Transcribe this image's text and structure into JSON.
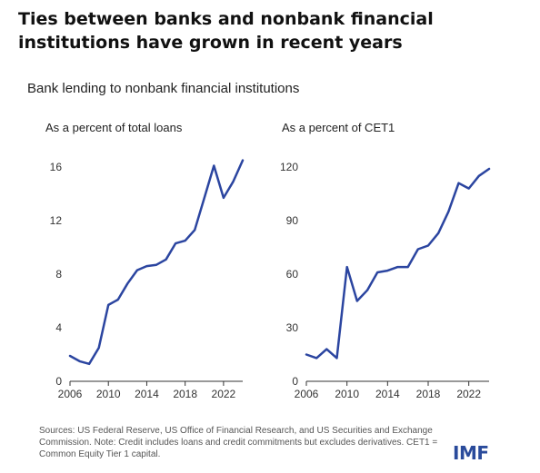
{
  "title": "Ties between banks and nonbank financial institutions have grown in recent years",
  "subtitle": "Bank lending to nonbank financial institutions",
  "source": "Sources: US Federal Reserve, US Office of Financial Research, and US Securities and Exchange Commission. Note: Credit includes loans and credit commitments but excludes derivatives. CET1 = Common Equity Tier 1 capital.",
  "logo": "IMF",
  "colors": {
    "line": "#2b45a0",
    "axis": "#333333",
    "logo": "#2a4b9b"
  },
  "chart_data": [
    {
      "type": "line",
      "title": "As a percent of total loans",
      "xlabel": "",
      "ylabel": "",
      "xlim": [
        2006,
        2024
      ],
      "ylim": [
        0,
        16
      ],
      "xticks": [
        2006,
        2010,
        2014,
        2018,
        2022
      ],
      "yticks": [
        0,
        4,
        8,
        12,
        16
      ],
      "grid": false,
      "series": [
        {
          "x": [
            2006,
            2007,
            2008,
            2009,
            2010,
            2011,
            2012,
            2013,
            2014,
            2015,
            2016,
            2017,
            2018,
            2019,
            2020,
            2021,
            2022,
            2023,
            2024
          ],
          "y": [
            1.9,
            1.5,
            1.3,
            2.5,
            5.7,
            6.1,
            7.3,
            8.3,
            8.6,
            8.7,
            9.1,
            10.3,
            10.5,
            11.3,
            13.7,
            16.1,
            13.7,
            14.9,
            16.5
          ]
        }
      ]
    },
    {
      "type": "line",
      "title": "As a percent of CET1",
      "xlabel": "",
      "ylabel": "",
      "xlim": [
        2006,
        2024
      ],
      "ylim": [
        0,
        120
      ],
      "xticks": [
        2006,
        2010,
        2014,
        2018,
        2022
      ],
      "yticks": [
        0,
        30,
        60,
        90,
        120
      ],
      "grid": false,
      "series": [
        {
          "x": [
            2006,
            2007,
            2008,
            2009,
            2010,
            2011,
            2012,
            2013,
            2014,
            2015,
            2016,
            2017,
            2018,
            2019,
            2020,
            2021,
            2022,
            2023,
            2024
          ],
          "y": [
            15,
            13,
            18,
            13,
            64,
            45,
            51,
            61,
            62,
            64,
            64,
            74,
            76,
            83,
            95,
            111,
            108,
            115,
            119
          ]
        }
      ]
    }
  ]
}
